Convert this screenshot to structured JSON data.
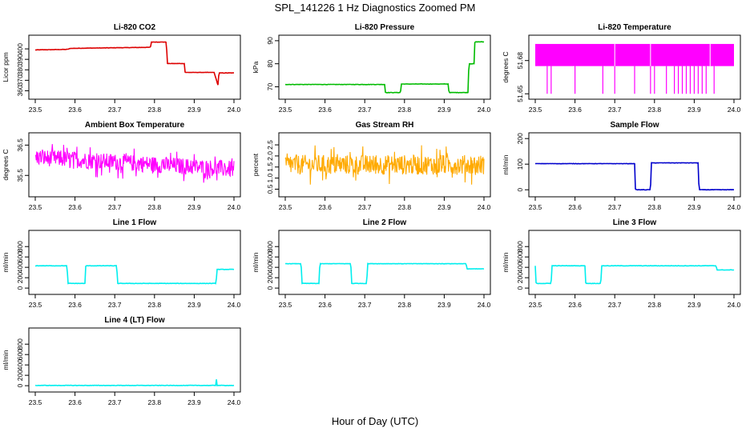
{
  "figure": {
    "title": "SPL_141226  1 Hz Diagnostics Zoomed PM",
    "xlabel": "Hour of Day (UTC)"
  },
  "chart_data": [
    {
      "type": "line",
      "title": "Li-820 CO2",
      "ylabel": "Licor ppm",
      "color": "#dd0000",
      "xlim": [
        23.5,
        24.0
      ],
      "ylim": [
        355,
        410
      ],
      "xticks": [
        23.5,
        23.6,
        23.7,
        23.8,
        23.9,
        24.0
      ],
      "xtick_labels": [
        "23.5",
        "23.6",
        "23.7",
        "23.8",
        "23.9",
        "24.0"
      ],
      "yticks": [
        360,
        370,
        380,
        390,
        400
      ],
      "ytick_labels": [
        "360",
        "370",
        "380",
        "390",
        "400"
      ],
      "ytick_rotated": true,
      "series": [
        {
          "name": "CO2",
          "x": [
            23.5,
            23.58,
            23.59,
            23.79,
            23.792,
            23.83,
            23.832,
            23.875,
            23.877,
            23.95,
            23.96,
            23.962,
            24.0
          ],
          "y": [
            399,
            399.5,
            400.5,
            401.5,
            406.5,
            406.5,
            386,
            386,
            377.5,
            377.5,
            365,
            377,
            377
          ]
        }
      ]
    },
    {
      "type": "line",
      "title": "Li-820 Pressure",
      "ylabel": "kPa",
      "color": "#00bb00",
      "xlim": [
        23.5,
        24.0
      ],
      "ylim": [
        66,
        91
      ],
      "xticks": [
        23.5,
        23.6,
        23.7,
        23.8,
        23.9,
        24.0
      ],
      "xtick_labels": [
        "23.5",
        "23.6",
        "23.7",
        "23.8",
        "23.9",
        "24.0"
      ],
      "yticks": [
        70,
        80,
        90
      ],
      "ytick_labels": [
        "70",
        "80",
        "90"
      ],
      "ytick_rotated": true,
      "series": [
        {
          "name": "Pressure",
          "x": [
            23.5,
            23.75,
            23.752,
            23.79,
            23.792,
            23.91,
            23.912,
            23.96,
            23.962,
            23.975,
            23.977,
            24.0
          ],
          "y": [
            71,
            71,
            67.5,
            67.5,
            71.2,
            71.2,
            67.5,
            67.5,
            80,
            80,
            89.5,
            89.5
          ]
        }
      ]
    },
    {
      "type": "line",
      "title": "Li-820 Temperature",
      "ylabel": "degrees C",
      "color": "#ff00ff",
      "xlim": [
        23.5,
        24.0
      ],
      "ylim": [
        51.648,
        51.7
      ],
      "xticks": [
        23.5,
        23.6,
        23.7,
        23.8,
        23.9,
        24.0
      ],
      "xtick_labels": [
        "23.5",
        "23.6",
        "23.7",
        "23.8",
        "23.9",
        "24.0"
      ],
      "yticks": [
        51.65,
        51.68
      ],
      "ytick_labels": [
        "51.65",
        "51.68"
      ],
      "ytick_rotated": true,
      "band": [
        51.675,
        51.695
      ],
      "dips": [
        23.53,
        23.54,
        23.6,
        23.67,
        23.7,
        23.75,
        23.79,
        23.8,
        23.83,
        23.85,
        23.86,
        23.87,
        23.88,
        23.89,
        23.9,
        23.91,
        23.92,
        23.93,
        23.95
      ],
      "dip_y": 51.65
    },
    {
      "type": "line",
      "title": "Ambient Box Temperature",
      "ylabel": "degrees C",
      "color": "#ff00ff",
      "xlim": [
        23.5,
        24.0
      ],
      "ylim": [
        34.9,
        36.8
      ],
      "xticks": [
        23.5,
        23.6,
        23.7,
        23.8,
        23.9,
        24.0
      ],
      "xtick_labels": [
        "23.5",
        "23.6",
        "23.7",
        "23.8",
        "23.9",
        "24.0"
      ],
      "yticks": [
        35.5,
        36.5
      ],
      "ytick_labels": [
        "35.5",
        "36.5"
      ],
      "ytick_rotated": true,
      "noise": {
        "start": 36.1,
        "end": 35.7,
        "amp": 0.55
      }
    },
    {
      "type": "line",
      "title": "Gas Stream RH",
      "ylabel": "percent",
      "color": "#ffaa00",
      "xlim": [
        23.5,
        24.0
      ],
      "ylim": [
        0.3,
        2.9
      ],
      "xticks": [
        23.5,
        23.6,
        23.7,
        23.8,
        23.9,
        24.0
      ],
      "xtick_labels": [
        "23.5",
        "23.6",
        "23.7",
        "23.8",
        "23.9",
        "24.0"
      ],
      "yticks": [
        0.5,
        1.0,
        1.5,
        2.0,
        2.5
      ],
      "ytick_labels": [
        "0.5",
        "1.0",
        "1.5",
        "2.0",
        "2.5"
      ],
      "ytick_rotated": true,
      "noise": {
        "start": 1.6,
        "end": 1.6,
        "amp": 0.9
      }
    },
    {
      "type": "line",
      "title": "Sample Flow",
      "ylabel": "ml/min",
      "color": "#0000cc",
      "xlim": [
        23.5,
        24.0
      ],
      "ylim": [
        -15,
        210
      ],
      "xticks": [
        23.5,
        23.6,
        23.7,
        23.8,
        23.9,
        24.0
      ],
      "xtick_labels": [
        "23.5",
        "23.6",
        "23.7",
        "23.8",
        "23.9",
        "24.0"
      ],
      "yticks": [
        0,
        100,
        200
      ],
      "ytick_labels": [
        "0",
        "100",
        "200"
      ],
      "ytick_rotated": true,
      "series": [
        {
          "name": "Sample Flow",
          "x": [
            23.5,
            23.75,
            23.752,
            23.79,
            23.792,
            23.91,
            23.912,
            24.0
          ],
          "y": [
            102,
            102,
            0,
            0,
            105,
            105,
            0,
            0
          ]
        }
      ]
    },
    {
      "type": "line",
      "title": "Line 1 Flow",
      "ylabel": "ml/min",
      "color": "#00eeee",
      "xlim": [
        23.5,
        24.0
      ],
      "ylim": [
        -60,
        1050
      ],
      "xticks": [
        23.5,
        23.6,
        23.7,
        23.8,
        23.9,
        24.0
      ],
      "xtick_labels": [
        "23.5",
        "23.6",
        "23.7",
        "23.8",
        "23.9",
        "24.0"
      ],
      "yticks": [
        0,
        200,
        400,
        600,
        800
      ],
      "ytick_labels": [
        "0",
        "200",
        "400",
        "600",
        "800"
      ],
      "ytick_rotated": true,
      "series": [
        {
          "name": "Line 1",
          "x": [
            23.5,
            23.58,
            23.582,
            23.625,
            23.627,
            23.705,
            23.707,
            23.955,
            23.957,
            24.0
          ],
          "y": [
            430,
            430,
            90,
            90,
            430,
            430,
            90,
            90,
            360,
            360
          ]
        }
      ]
    },
    {
      "type": "line",
      "title": "Line 2 Flow",
      "ylabel": "ml/min",
      "color": "#00eeee",
      "xlim": [
        23.5,
        24.0
      ],
      "ylim": [
        -60,
        1050
      ],
      "xticks": [
        23.5,
        23.6,
        23.7,
        23.8,
        23.9,
        24.0
      ],
      "xtick_labels": [
        "23.5",
        "23.6",
        "23.7",
        "23.8",
        "23.9",
        "24.0"
      ],
      "yticks": [
        0,
        200,
        400,
        600,
        800
      ],
      "ytick_labels": [
        "0",
        "200",
        "400",
        "600",
        "800"
      ],
      "ytick_rotated": true,
      "series": [
        {
          "name": "Line 2",
          "x": [
            23.5,
            23.54,
            23.542,
            23.585,
            23.587,
            23.665,
            23.667,
            23.705,
            23.707,
            23.955,
            23.957,
            24.0
          ],
          "y": [
            470,
            470,
            90,
            90,
            470,
            470,
            90,
            90,
            470,
            470,
            370,
            370
          ]
        }
      ]
    },
    {
      "type": "line",
      "title": "Line 3 Flow",
      "ylabel": "ml/min",
      "color": "#00eeee",
      "xlim": [
        23.5,
        24.0
      ],
      "ylim": [
        -60,
        1050
      ],
      "xticks": [
        23.5,
        23.6,
        23.7,
        23.8,
        23.9,
        24.0
      ],
      "xtick_labels": [
        "23.5",
        "23.6",
        "23.7",
        "23.8",
        "23.9",
        "24.0"
      ],
      "yticks": [
        0,
        200,
        400,
        600,
        800
      ],
      "ytick_labels": [
        "0",
        "200",
        "400",
        "600",
        "800"
      ],
      "ytick_rotated": true,
      "series": [
        {
          "name": "Line 3",
          "x": [
            23.5,
            23.502,
            23.54,
            23.542,
            23.625,
            23.627,
            23.665,
            23.667,
            23.955,
            23.957,
            24.0
          ],
          "y": [
            430,
            90,
            90,
            430,
            430,
            90,
            90,
            430,
            430,
            350,
            350
          ]
        }
      ]
    },
    {
      "type": "line",
      "title": "Line 4 (LT) Flow",
      "ylabel": "ml/min",
      "color": "#00eeee",
      "xlim": [
        23.5,
        24.0
      ],
      "ylim": [
        -60,
        1050
      ],
      "xticks": [
        23.5,
        23.6,
        23.7,
        23.8,
        23.9,
        24.0
      ],
      "xtick_labels": [
        "23.5",
        "23.6",
        "23.7",
        "23.8",
        "23.9",
        "24.0"
      ],
      "yticks": [
        0,
        200,
        400,
        600,
        800
      ],
      "ytick_labels": [
        "0",
        "200",
        "400",
        "600",
        "800"
      ],
      "ytick_rotated": true,
      "series": [
        {
          "name": "Line 4",
          "x": [
            23.5,
            23.955,
            23.956,
            23.957,
            23.958,
            24.0
          ],
          "y": [
            5,
            5,
            160,
            5,
            5,
            5
          ]
        }
      ]
    }
  ]
}
